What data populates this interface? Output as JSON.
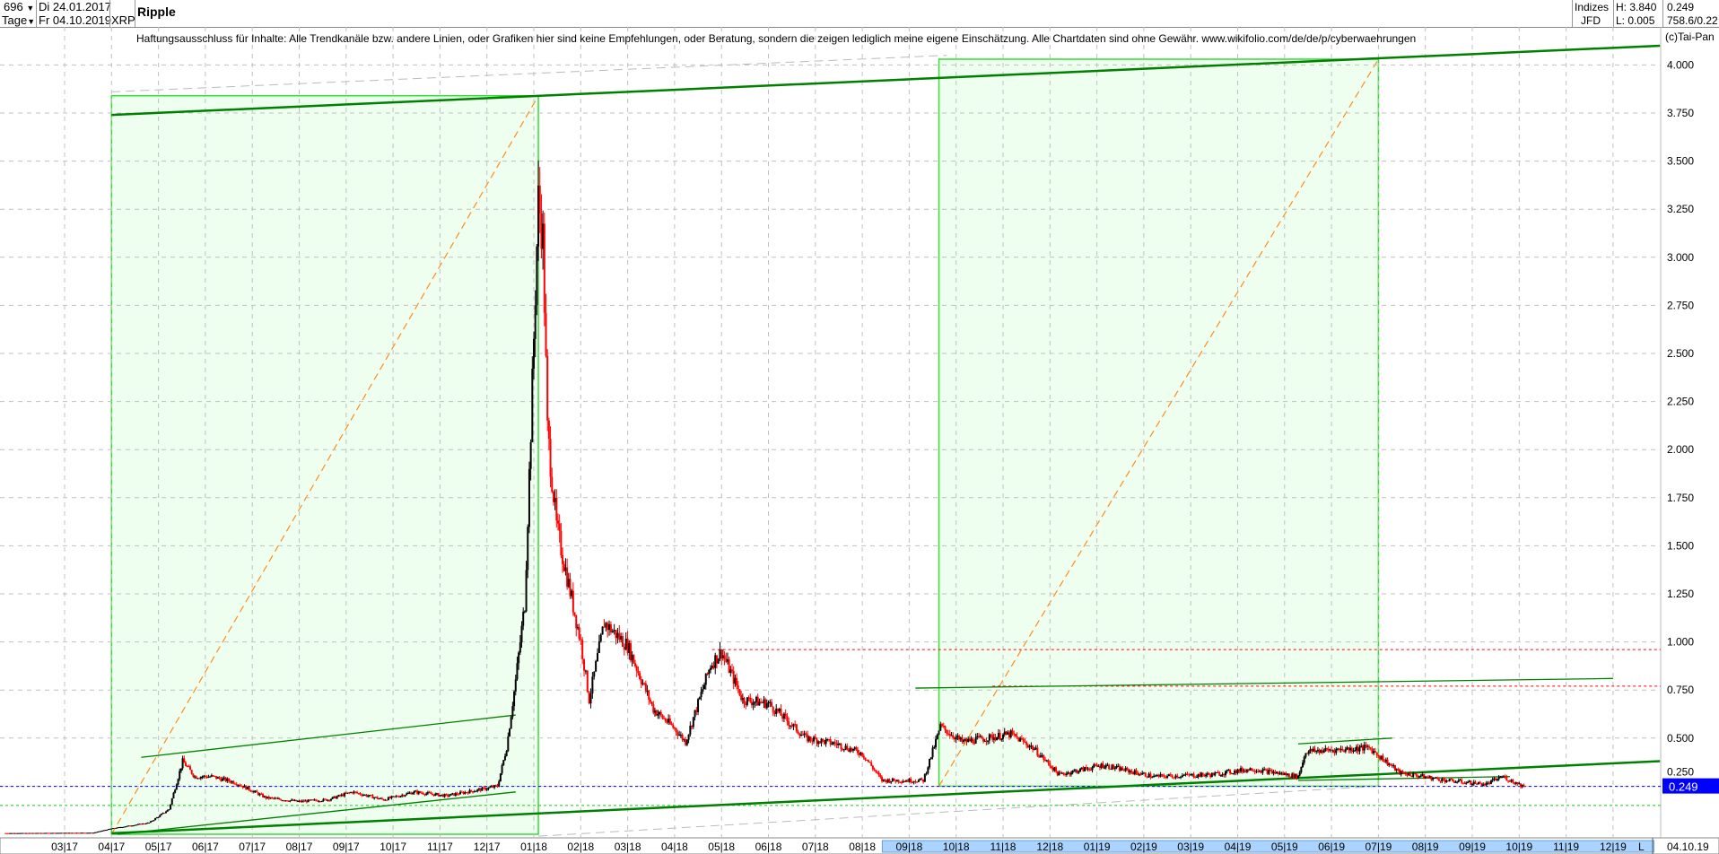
{
  "header": {
    "count_selector": "696",
    "period_selector": "Tage",
    "date_from": "Di 24.01.2017",
    "date_to": "Fr 04.10.2019",
    "symbol": "XRP",
    "title": "Ripple",
    "index_label": "Indizes",
    "source_label": "JFD",
    "high": "H: 3.840",
    "low": "L: 0.005",
    "last": "0.249",
    "extra": "758.6/0.22"
  },
  "disclaimer": "Haftungsausschluss für Inhalte: Alle Trendkanäle bzw. andere Linien, oder Grafiken hier sind keine Empfehlungen, oder Beratung, sondern die zeigen lediglich meine eigene Einschätzung. Alle Chartdaten sind ohne Gewähr.  www.wikifolio.com/de/de/p/cyberwaehrungen",
  "copyright": "(c)Tai-Pan",
  "colors": {
    "up": "#000000",
    "down": "#ff0000",
    "trend": "#008000",
    "box_fill": "#efffef",
    "box_border": "#33dd33",
    "diag": "#ff8c1a",
    "resistance": "#ff0000",
    "current": "#0000ff",
    "support": "#00dd00",
    "selection": "#aad4ff"
  },
  "chart_data": {
    "type": "candlestick",
    "title": "Ripple",
    "ylim": [
      0,
      4.1
    ],
    "y_ticks": [
      "0.250",
      "0.500",
      "0.750",
      "1.000",
      "1.250",
      "1.500",
      "1.750",
      "2.000",
      "2.250",
      "2.500",
      "2.750",
      "3.000",
      "3.250",
      "3.500",
      "3.750",
      "4.000"
    ],
    "x_ticks": [
      "03|17",
      "04|17",
      "05|17",
      "06|17",
      "07|17",
      "08|17",
      "09|17",
      "10|17",
      "11|17",
      "12|17",
      "01|18",
      "02|18",
      "03|18",
      "04|18",
      "05|18",
      "06|18",
      "07|18",
      "08|18",
      "09|18",
      "10|18",
      "11|18",
      "12|18",
      "01|19",
      "02|19",
      "03|19",
      "04|19",
      "05|19",
      "06|19",
      "07|19",
      "08|19",
      "09|19",
      "10|19",
      "11|19",
      "12|19"
    ],
    "x_end_label": "L",
    "last_date_label": "04.10.19",
    "grid": true,
    "current_price": 0.249,
    "current_price_label": "0.249",
    "price_path": [
      [
        "2017-01-24",
        0.006
      ],
      [
        "2017-03-20",
        0.008
      ],
      [
        "2017-04-01",
        0.03
      ],
      [
        "2017-04-25",
        0.06
      ],
      [
        "2017-05-08",
        0.13
      ],
      [
        "2017-05-17",
        0.38
      ],
      [
        "2017-05-25",
        0.3
      ],
      [
        "2017-06-05",
        0.3
      ],
      [
        "2017-06-20",
        0.27
      ],
      [
        "2017-07-10",
        0.19
      ],
      [
        "2017-08-01",
        0.17
      ],
      [
        "2017-08-20",
        0.18
      ],
      [
        "2017-09-05",
        0.22
      ],
      [
        "2017-09-25",
        0.18
      ],
      [
        "2017-10-15",
        0.22
      ],
      [
        "2017-11-05",
        0.2
      ],
      [
        "2017-11-25",
        0.23
      ],
      [
        "2017-12-08",
        0.25
      ],
      [
        "2017-12-14",
        0.45
      ],
      [
        "2017-12-20",
        0.8
      ],
      [
        "2017-12-26",
        1.2
      ],
      [
        "2017-12-30",
        2.1
      ],
      [
        "2018-01-04",
        3.3
      ],
      [
        "2018-01-07",
        3.1
      ],
      [
        "2018-01-10",
        2.1
      ],
      [
        "2018-01-16",
        1.6
      ],
      [
        "2018-02-01",
        1.0
      ],
      [
        "2018-02-06",
        0.7
      ],
      [
        "2018-02-15",
        1.1
      ],
      [
        "2018-03-01",
        0.98
      ],
      [
        "2018-03-18",
        0.65
      ],
      [
        "2018-04-01",
        0.55
      ],
      [
        "2018-04-08",
        0.48
      ],
      [
        "2018-04-24",
        0.88
      ],
      [
        "2018-05-01",
        0.95
      ],
      [
        "2018-05-15",
        0.7
      ],
      [
        "2018-06-01",
        0.68
      ],
      [
        "2018-06-25",
        0.5
      ],
      [
        "2018-07-15",
        0.47
      ],
      [
        "2018-08-01",
        0.42
      ],
      [
        "2018-08-14",
        0.28
      ],
      [
        "2018-09-10",
        0.28
      ],
      [
        "2018-09-21",
        0.56
      ],
      [
        "2018-10-05",
        0.48
      ],
      [
        "2018-11-06",
        0.52
      ],
      [
        "2018-11-20",
        0.45
      ],
      [
        "2018-12-07",
        0.31
      ],
      [
        "2019-01-05",
        0.36
      ],
      [
        "2019-02-07",
        0.3
      ],
      [
        "2019-03-15",
        0.31
      ],
      [
        "2019-04-10",
        0.34
      ],
      [
        "2019-05-10",
        0.3
      ],
      [
        "2019-05-15",
        0.43
      ],
      [
        "2019-06-25",
        0.45
      ],
      [
        "2019-07-15",
        0.32
      ],
      [
        "2019-08-15",
        0.28
      ],
      [
        "2019-09-10",
        0.26
      ],
      [
        "2019-09-20",
        0.3
      ],
      [
        "2019-10-04",
        0.249
      ]
    ],
    "annotations": {
      "boxes": [
        {
          "from": "2017-04-01",
          "to": "2018-01-04",
          "low": 0.0,
          "high": 3.84
        },
        {
          "from": "2018-09-20",
          "to": "2019-07-01",
          "low": 0.25,
          "high": 4.03
        }
      ],
      "trend_lines": [
        {
          "from": [
            "2017-04-01",
            3.74
          ],
          "to": [
            "2020-01-01",
            4.1
          ],
          "weight": "thick"
        },
        {
          "from": [
            "2017-04-01",
            0.005
          ],
          "to": [
            "2020-01-01",
            0.38
          ],
          "weight": "thick"
        },
        {
          "from": [
            "2017-04-20",
            0.4
          ],
          "to": [
            "2017-12-20",
            0.62
          ],
          "weight": "thin"
        },
        {
          "from": [
            "2017-04-05",
            0.0
          ],
          "to": [
            "2017-12-20",
            0.22
          ],
          "weight": "thin"
        },
        {
          "from": [
            "2018-09-05",
            0.76
          ],
          "to": [
            "2019-12-01",
            0.81
          ],
          "weight": "thin"
        },
        {
          "from": [
            "2019-05-10",
            0.47
          ],
          "to": [
            "2019-07-10",
            0.5
          ],
          "weight": "thin"
        },
        {
          "from": [
            "2019-05-10",
            0.28
          ],
          "to": [
            "2019-09-25",
            0.3
          ],
          "weight": "thin"
        }
      ],
      "resistance_levels": [
        {
          "from": "2018-04-25",
          "price": 0.96
        },
        {
          "from": "2018-10-25",
          "price": 0.77
        }
      ],
      "support_level": 0.15
    }
  }
}
